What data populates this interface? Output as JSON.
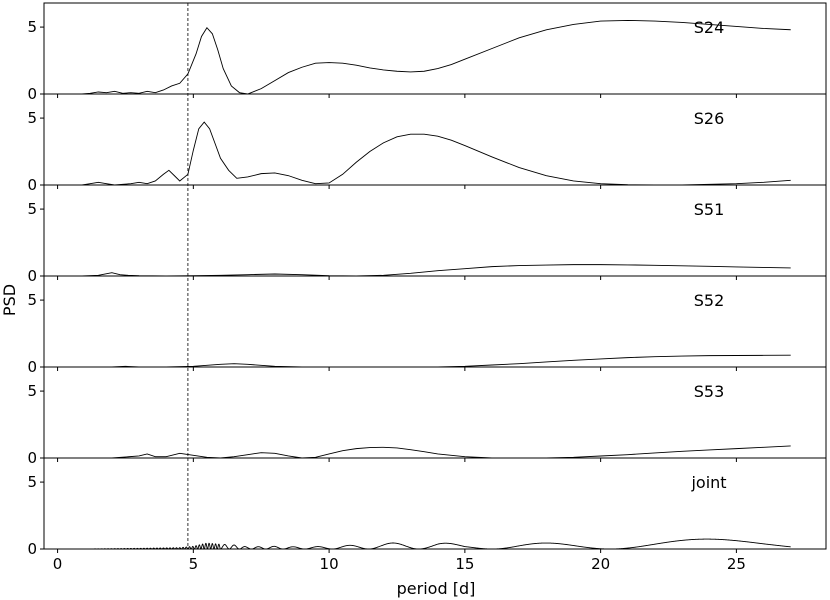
{
  "chart_data": {
    "type": "line",
    "layout": "stacked-subplots",
    "shared_x": true,
    "xlabel": "period [d]",
    "ylabel": "PSD",
    "xlim": [
      -0.5,
      28.3
    ],
    "ylim": [
      0,
      6.8
    ],
    "xticks": [
      0,
      5,
      10,
      15,
      20,
      25
    ],
    "yticks": [
      0,
      5
    ],
    "vertical_reference_line": {
      "x": 4.8,
      "style": "dashed"
    },
    "panels": [
      {
        "label": "S24",
        "x": [
          0.9,
          1.2,
          1.5,
          1.8,
          2.1,
          2.4,
          2.7,
          3.0,
          3.3,
          3.6,
          3.9,
          4.2,
          4.5,
          4.8,
          5.1,
          5.3,
          5.5,
          5.7,
          5.9,
          6.1,
          6.4,
          6.7,
          7.0,
          7.5,
          8.0,
          8.5,
          9.0,
          9.5,
          10.0,
          10.5,
          11.0,
          11.5,
          12.0,
          12.5,
          13.0,
          13.5,
          14.0,
          14.5,
          15.0,
          16.0,
          17.0,
          18.0,
          19.0,
          20.0,
          21.0,
          22.0,
          23.0,
          24.0,
          25.0,
          26.0,
          27.0
        ],
        "y": [
          0.0,
          0.05,
          0.15,
          0.1,
          0.2,
          0.05,
          0.1,
          0.05,
          0.2,
          0.1,
          0.3,
          0.6,
          0.8,
          1.5,
          3.0,
          4.3,
          4.95,
          4.5,
          3.3,
          1.9,
          0.6,
          0.1,
          0.0,
          0.4,
          1.0,
          1.6,
          2.0,
          2.3,
          2.35,
          2.3,
          2.15,
          1.95,
          1.8,
          1.7,
          1.65,
          1.7,
          1.9,
          2.2,
          2.6,
          3.4,
          4.2,
          4.8,
          5.2,
          5.45,
          5.5,
          5.45,
          5.35,
          5.2,
          5.05,
          4.9,
          4.8
        ]
      },
      {
        "label": "S26",
        "x": [
          0.9,
          1.2,
          1.5,
          1.8,
          2.1,
          2.4,
          2.7,
          3.0,
          3.3,
          3.6,
          3.9,
          4.1,
          4.3,
          4.5,
          4.8,
          5.0,
          5.2,
          5.4,
          5.6,
          5.8,
          6.0,
          6.3,
          6.6,
          7.0,
          7.5,
          8.0,
          8.5,
          9.0,
          9.5,
          10.0,
          10.5,
          11.0,
          11.5,
          12.0,
          12.5,
          13.0,
          13.5,
          14.0,
          14.5,
          15.0,
          16.0,
          17.0,
          18.0,
          19.0,
          20.0,
          21.0,
          22.0,
          23.0,
          24.0,
          25.0,
          26.0,
          27.0
        ],
        "y": [
          0.0,
          0.1,
          0.2,
          0.1,
          0.0,
          0.05,
          0.1,
          0.2,
          0.1,
          0.3,
          0.8,
          1.1,
          0.7,
          0.3,
          0.8,
          2.6,
          4.2,
          4.7,
          4.2,
          3.1,
          2.0,
          1.1,
          0.5,
          0.6,
          0.85,
          0.9,
          0.7,
          0.35,
          0.1,
          0.15,
          0.8,
          1.7,
          2.5,
          3.15,
          3.6,
          3.8,
          3.8,
          3.65,
          3.35,
          2.95,
          2.1,
          1.3,
          0.7,
          0.3,
          0.1,
          0.02,
          0.0,
          0.0,
          0.05,
          0.1,
          0.2,
          0.35
        ]
      },
      {
        "label": "S51",
        "x": [
          0.9,
          1.5,
          2.0,
          2.3,
          2.6,
          3.0,
          4.0,
          5.0,
          6.0,
          7.0,
          8.0,
          9.0,
          10.0,
          11.0,
          12.0,
          13.0,
          14.0,
          15.0,
          16.0,
          17.0,
          18.0,
          19.0,
          20.0,
          21.0,
          22.0,
          23.0,
          24.0,
          25.0,
          26.0,
          27.0
        ],
        "y": [
          0.0,
          0.05,
          0.25,
          0.1,
          0.05,
          0.02,
          0.0,
          0.02,
          0.05,
          0.1,
          0.15,
          0.1,
          0.02,
          0.0,
          0.05,
          0.2,
          0.4,
          0.55,
          0.7,
          0.78,
          0.82,
          0.85,
          0.85,
          0.83,
          0.8,
          0.76,
          0.72,
          0.68,
          0.64,
          0.6
        ]
      },
      {
        "label": "S52",
        "x": [
          0.9,
          2.0,
          2.5,
          3.0,
          4.0,
          5.0,
          6.0,
          6.5,
          7.0,
          8.0,
          9.0,
          10.0,
          11.0,
          12.0,
          13.0,
          14.0,
          15.0,
          16.0,
          17.0,
          18.0,
          19.0,
          20.0,
          21.0,
          22.0,
          23.0,
          24.0,
          25.0,
          26.0,
          27.0
        ],
        "y": [
          0.0,
          0.0,
          0.05,
          0.0,
          0.0,
          0.05,
          0.2,
          0.25,
          0.2,
          0.05,
          0.0,
          0.0,
          0.0,
          0.0,
          0.0,
          0.0,
          0.05,
          0.15,
          0.25,
          0.38,
          0.5,
          0.6,
          0.7,
          0.77,
          0.82,
          0.85,
          0.86,
          0.87,
          0.88
        ]
      },
      {
        "label": "S53",
        "x": [
          0.9,
          2.0,
          3.0,
          3.3,
          3.6,
          4.0,
          4.5,
          5.0,
          5.5,
          6.0,
          6.5,
          7.0,
          7.5,
          8.0,
          8.5,
          9.0,
          9.5,
          10.0,
          10.5,
          11.0,
          11.5,
          12.0,
          12.5,
          13.0,
          13.5,
          14.0,
          15.0,
          16.0,
          17.0,
          18.0,
          19.0,
          20.0,
          21.0,
          22.0,
          23.0,
          24.0,
          25.0,
          26.0,
          27.0
        ],
        "y": [
          0.0,
          0.0,
          0.15,
          0.3,
          0.1,
          0.1,
          0.35,
          0.2,
          0.05,
          0.0,
          0.1,
          0.25,
          0.4,
          0.35,
          0.15,
          0.0,
          0.05,
          0.3,
          0.55,
          0.7,
          0.78,
          0.8,
          0.75,
          0.62,
          0.47,
          0.3,
          0.1,
          0.0,
          0.0,
          0.0,
          0.05,
          0.15,
          0.25,
          0.38,
          0.5,
          0.6,
          0.7,
          0.8,
          0.9
        ]
      },
      {
        "label": "joint",
        "x_range": [
          0.9,
          27.0
        ],
        "envelope": {
          "x": [
            0.9,
            3.0,
            4.5,
            5.0,
            5.5,
            6.0,
            6.5,
            7.0,
            8.0,
            9.0,
            10.0,
            11.0,
            12.0,
            13.0,
            14.0,
            15.0,
            16.0,
            17.0,
            18.0,
            19.0,
            20.0,
            21.0,
            22.0,
            23.0,
            24.0,
            25.0,
            26.0,
            27.0
          ],
          "y": [
            0.0,
            0.05,
            0.1,
            0.2,
            0.45,
            0.35,
            0.3,
            0.15,
            0.2,
            0.15,
            0.2,
            0.3,
            0.4,
            0.55,
            0.55,
            0.25,
            0.3,
            0.4,
            0.45,
            0.5,
            0.55,
            0.6,
            0.65,
            0.7,
            0.75,
            0.8,
            0.85,
            0.95
          ]
        }
      }
    ]
  }
}
